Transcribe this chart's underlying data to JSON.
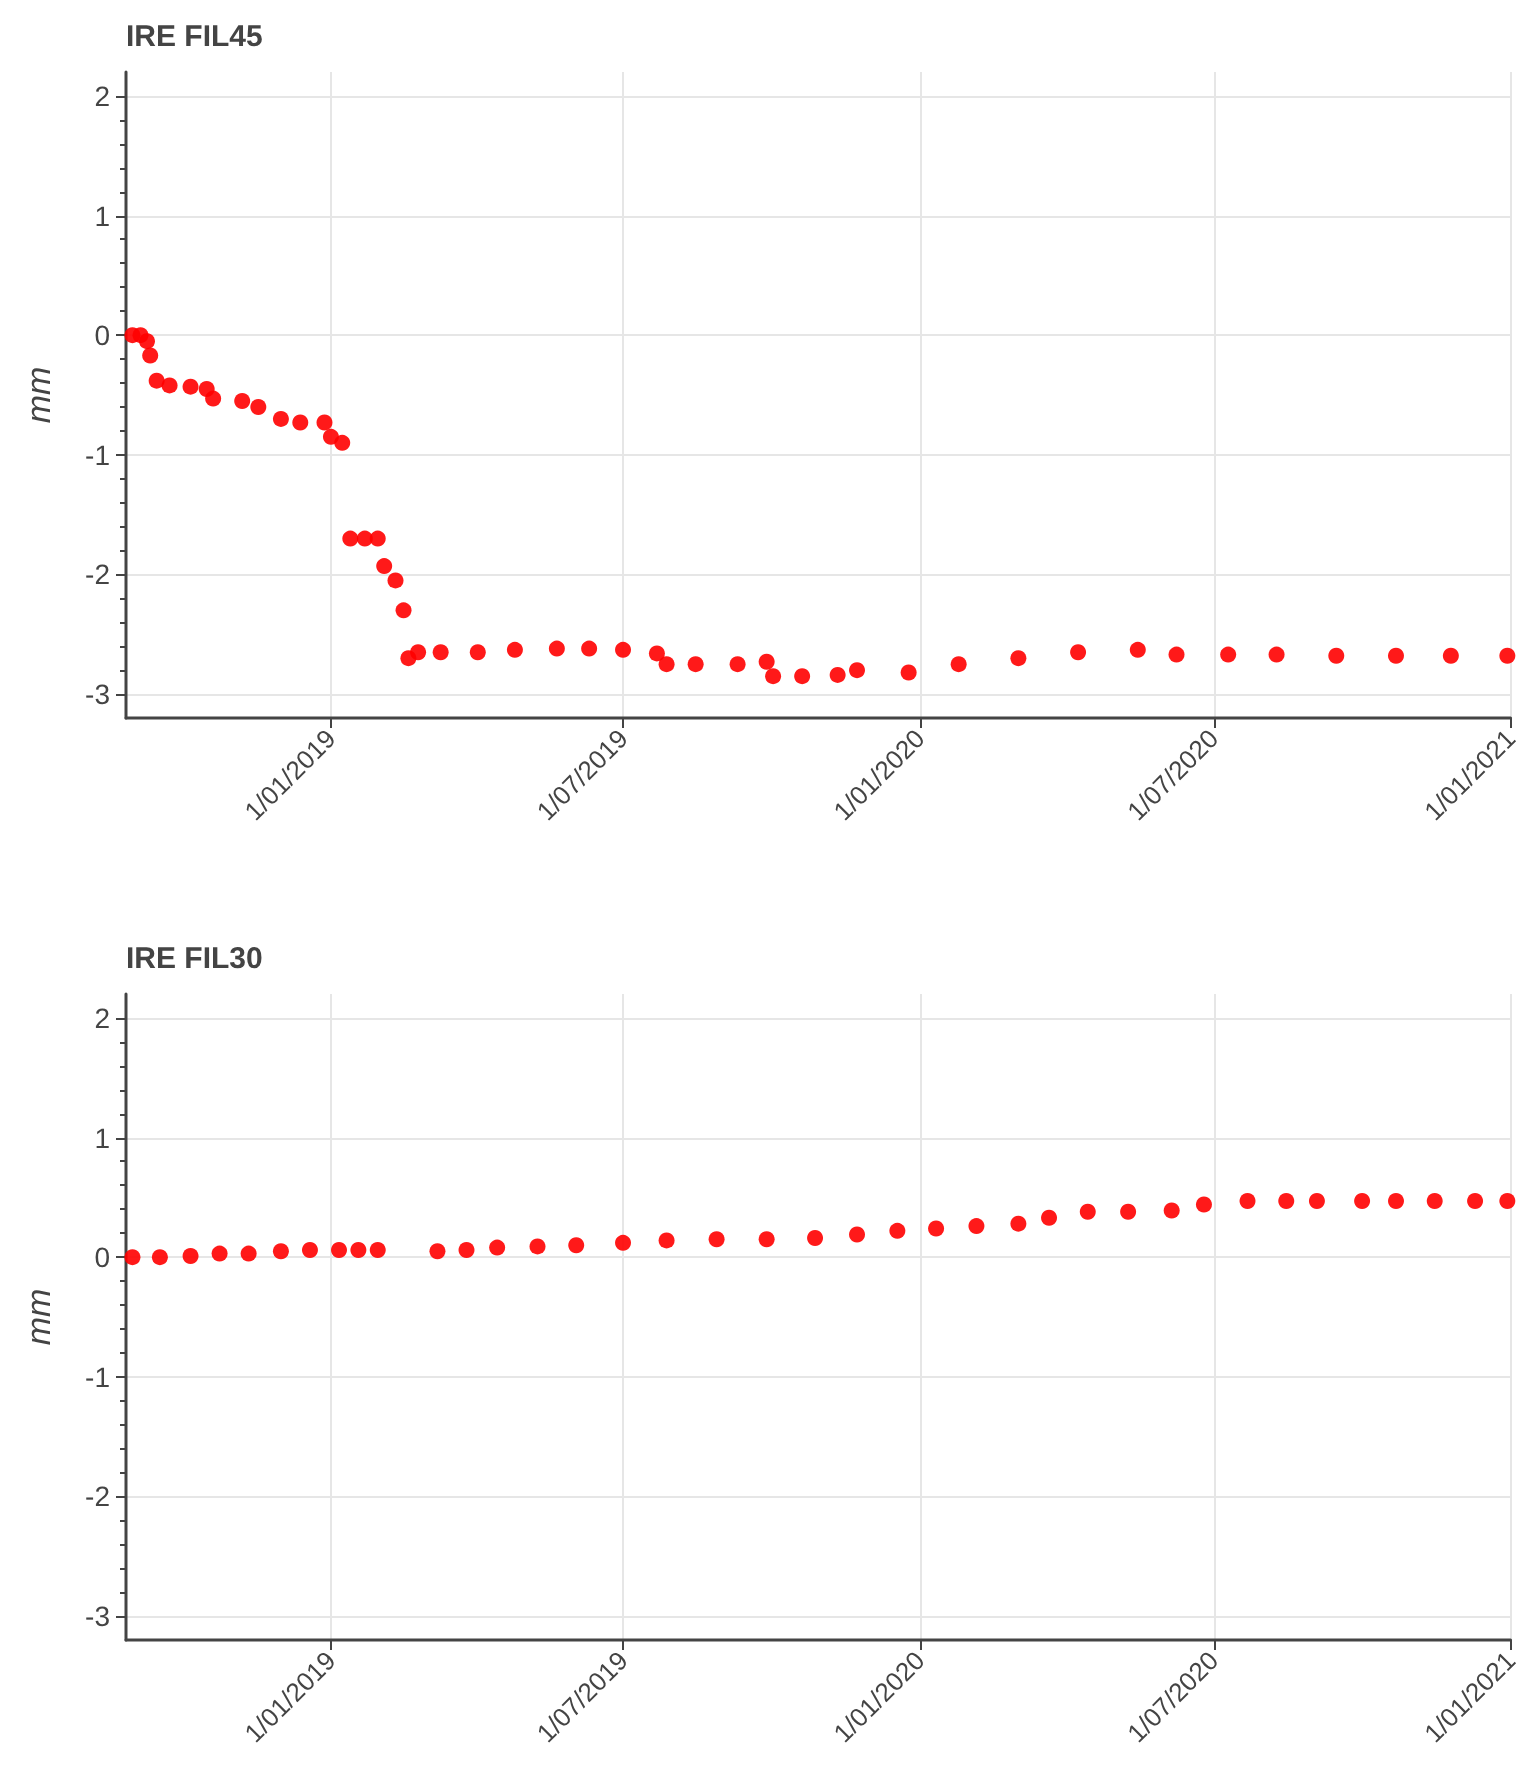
{
  "chart_data": [
    {
      "type": "scatter",
      "title": "IRE FIL45",
      "ylabel": "mm",
      "color": "#ff0000",
      "marker": "circle",
      "grid": true,
      "xlim": [
        "2018-08-27",
        "2021-01-01"
      ],
      "ylim": [
        -3.2,
        2.2
      ],
      "xticks": [
        {
          "value": "2019-01-01",
          "label": "1/01/2019"
        },
        {
          "value": "2019-07-01",
          "label": "1/07/2019"
        },
        {
          "value": "2020-01-01",
          "label": "1/01/2020"
        },
        {
          "value": "2020-07-01",
          "label": "1/07/2020"
        },
        {
          "value": "2021-01-01",
          "label": "1/01/2021"
        }
      ],
      "yticks": [
        -3,
        -2,
        -1,
        0,
        1,
        2
      ],
      "x": [
        "2018-08-31",
        "2018-09-05",
        "2018-09-09",
        "2018-09-11",
        "2018-09-15",
        "2018-09-23",
        "2018-10-06",
        "2018-10-16",
        "2018-10-20",
        "2018-11-07",
        "2018-11-17",
        "2018-12-01",
        "2018-12-13",
        "2018-12-28",
        "2019-01-01",
        "2019-01-08",
        "2019-01-13",
        "2019-01-22",
        "2019-01-30",
        "2019-02-03",
        "2019-02-10",
        "2019-02-15",
        "2019-02-18",
        "2019-02-24",
        "2019-03-10",
        "2019-04-02",
        "2019-04-25",
        "2019-05-21",
        "2019-06-10",
        "2019-07-01",
        "2019-07-22",
        "2019-07-28",
        "2019-08-15",
        "2019-09-10",
        "2019-09-28",
        "2019-10-02",
        "2019-10-20",
        "2019-11-11",
        "2019-11-23",
        "2019-12-25",
        "2020-01-25",
        "2020-03-02",
        "2020-04-08",
        "2020-05-15",
        "2020-06-08",
        "2020-07-10",
        "2020-08-09",
        "2020-09-15",
        "2020-10-22",
        "2020-11-25",
        "2020-12-30"
      ],
      "values": [
        0,
        0,
        -0.05,
        -0.17,
        -0.38,
        -0.42,
        -0.43,
        -0.45,
        -0.53,
        -0.55,
        -0.6,
        -0.7,
        -0.73,
        -0.73,
        -0.85,
        -0.9,
        -1.7,
        -1.7,
        -1.7,
        -1.93,
        -2.05,
        -2.3,
        -2.7,
        -2.65,
        -2.65,
        -2.65,
        -2.63,
        -2.62,
        -2.62,
        -2.63,
        -2.66,
        -2.75,
        -2.75,
        -2.75,
        -2.73,
        -2.85,
        -2.85,
        -2.84,
        -2.8,
        -2.82,
        -2.75,
        -2.7,
        -2.65,
        -2.63,
        -2.67,
        -2.67,
        -2.67,
        -2.68,
        -2.68,
        -2.68,
        -2.68
      ]
    },
    {
      "type": "scatter",
      "title": "IRE FIL30",
      "ylabel": "mm",
      "color": "#ff0000",
      "marker": "circle",
      "grid": true,
      "xlim": [
        "2018-08-27",
        "2021-01-01"
      ],
      "ylim": [
        -3.2,
        2.2
      ],
      "xticks": [
        {
          "value": "2019-01-01",
          "label": "1/01/2019"
        },
        {
          "value": "2019-07-01",
          "label": "1/07/2019"
        },
        {
          "value": "2020-01-01",
          "label": "1/01/2020"
        },
        {
          "value": "2020-07-01",
          "label": "1/07/2020"
        },
        {
          "value": "2021-01-01",
          "label": "1/01/2021"
        }
      ],
      "yticks": [
        -3,
        -2,
        -1,
        0,
        1,
        2
      ],
      "x": [
        "2018-08-31",
        "2018-09-17",
        "2018-10-06",
        "2018-10-24",
        "2018-11-11",
        "2018-12-01",
        "2018-12-19",
        "2019-01-06",
        "2019-01-18",
        "2019-01-30",
        "2019-03-08",
        "2019-03-26",
        "2019-04-14",
        "2019-05-09",
        "2019-06-02",
        "2019-07-01",
        "2019-07-28",
        "2019-08-28",
        "2019-09-28",
        "2019-10-28",
        "2019-11-23",
        "2019-12-18",
        "2020-01-11",
        "2020-02-05",
        "2020-03-02",
        "2020-03-21",
        "2020-04-14",
        "2020-05-09",
        "2020-06-05",
        "2020-06-25",
        "2020-07-22",
        "2020-08-15",
        "2020-09-03",
        "2020-10-01",
        "2020-10-22",
        "2020-11-15",
        "2020-12-10",
        "2020-12-30"
      ],
      "values": [
        0,
        0,
        0.01,
        0.03,
        0.03,
        0.05,
        0.06,
        0.06,
        0.06,
        0.06,
        0.05,
        0.06,
        0.08,
        0.09,
        0.1,
        0.12,
        0.14,
        0.15,
        0.15,
        0.16,
        0.19,
        0.22,
        0.24,
        0.26,
        0.28,
        0.33,
        0.38,
        0.38,
        0.39,
        0.44,
        0.47,
        0.47,
        0.47,
        0.47,
        0.47,
        0.47,
        0.47,
        0.47
      ]
    }
  ]
}
